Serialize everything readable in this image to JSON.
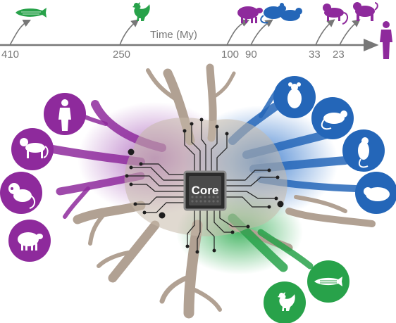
{
  "timeline": {
    "axis_label": "Time (My)",
    "ticks": [
      "410",
      "250",
      "100",
      "90",
      "33",
      "23"
    ]
  },
  "chip": {
    "label": "Core"
  },
  "colors": {
    "purple": "#8e2a9c",
    "blue": "#2466b8",
    "green": "#28a24a",
    "neuron": "#b1a193",
    "axis": "#777777"
  },
  "timeline_species": [
    {
      "icon": "zebrafish-icon",
      "color": "green"
    },
    {
      "icon": "chicken-icon",
      "color": "green"
    },
    {
      "icon": "sheep-icon",
      "color": "purple"
    },
    {
      "icon": "rodents-icon",
      "color": "blue"
    },
    {
      "icon": "small-primate-icon",
      "color": "purple"
    },
    {
      "icon": "monkey-icon",
      "color": "purple"
    },
    {
      "icon": "human-icon",
      "color": "purple"
    }
  ],
  "circle_species": [
    {
      "icon": "human-icon",
      "color": "purple"
    },
    {
      "icon": "monkey-icon",
      "color": "purple"
    },
    {
      "icon": "marmoset-icon",
      "color": "purple"
    },
    {
      "icon": "sheep-icon",
      "color": "purple"
    },
    {
      "icon": "mouse-icon",
      "color": "blue"
    },
    {
      "icon": "rat-icon",
      "color": "blue"
    },
    {
      "icon": "gerbil-icon",
      "color": "blue"
    },
    {
      "icon": "guinea-pig-icon",
      "color": "blue"
    },
    {
      "icon": "zebrafish-icon",
      "color": "green"
    },
    {
      "icon": "chicken-icon",
      "color": "green"
    }
  ]
}
